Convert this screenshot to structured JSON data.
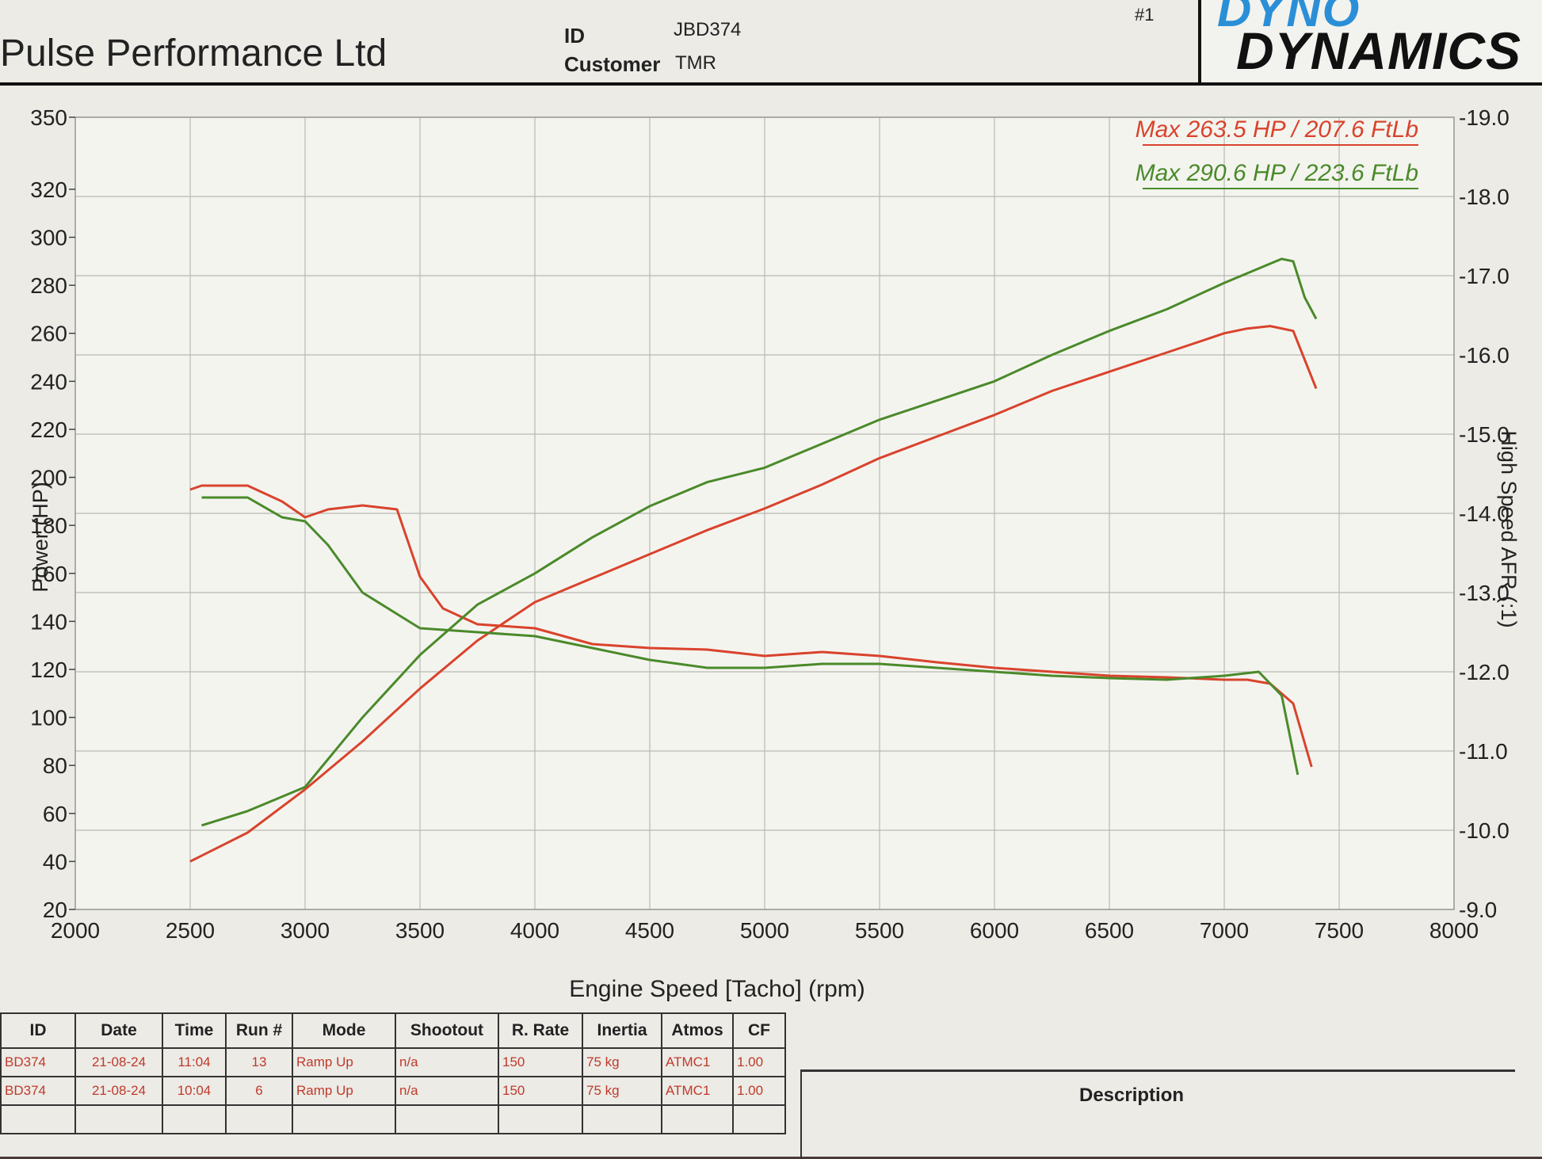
{
  "header": {
    "company": "Pulse Performance Ltd",
    "id_label": "ID",
    "id_value": "JBD374",
    "customer_label": "Customer",
    "customer_value": "TMR",
    "sheet_number": "#1",
    "logo_top": "DYNO",
    "logo_bottom": "DYNAMICS"
  },
  "chart_data": {
    "type": "line",
    "xlabel": "Engine Speed [Tacho] (rpm)",
    "ylabel": "Power (HP)",
    "y2label": "High Speed AFR (:1)",
    "xlim": [
      2000,
      8000
    ],
    "ylim": [
      20,
      350
    ],
    "y2lim": [
      9.0,
      19.0
    ],
    "x_ticks": [
      2000,
      2500,
      3000,
      3500,
      4000,
      4500,
      5000,
      5500,
      6000,
      6500,
      7000,
      7500,
      8000
    ],
    "y_ticks": [
      20,
      40,
      60,
      80,
      100,
      120,
      140,
      160,
      180,
      200,
      220,
      240,
      260,
      280,
      300,
      320,
      350
    ],
    "y2_ticks": [
      "-9.0",
      "-10.0",
      "-11.0",
      "-12.0",
      "-13.0",
      "-14.0",
      "-15.0",
      "-16.0",
      "-17.0",
      "-18.0",
      "-19.0"
    ],
    "y2_tick_values": [
      9,
      10,
      11,
      12,
      13,
      14,
      15,
      16,
      17,
      18,
      19
    ],
    "grid": true,
    "legend_position": "top-right",
    "series": [
      {
        "name": "Max 263.5 HP  / 207.6 FtLb",
        "color": "#d9432c",
        "power_hp": [
          [
            2500,
            40
          ],
          [
            2750,
            52
          ],
          [
            3000,
            70
          ],
          [
            3250,
            90
          ],
          [
            3500,
            112
          ],
          [
            3750,
            132
          ],
          [
            4000,
            148
          ],
          [
            4250,
            158
          ],
          [
            4500,
            168
          ],
          [
            4750,
            178
          ],
          [
            5000,
            187
          ],
          [
            5250,
            197
          ],
          [
            5500,
            208
          ],
          [
            5750,
            217
          ],
          [
            6000,
            226
          ],
          [
            6250,
            236
          ],
          [
            6500,
            244
          ],
          [
            6750,
            252
          ],
          [
            7000,
            260
          ],
          [
            7100,
            262
          ],
          [
            7200,
            263
          ],
          [
            7300,
            261
          ],
          [
            7400,
            237
          ]
        ],
        "afr": [
          [
            2500,
            14.3
          ],
          [
            2550,
            14.35
          ],
          [
            2750,
            14.35
          ],
          [
            2900,
            14.15
          ],
          [
            3000,
            13.95
          ],
          [
            3100,
            14.05
          ],
          [
            3250,
            14.1
          ],
          [
            3400,
            14.05
          ],
          [
            3500,
            13.2
          ],
          [
            3600,
            12.8
          ],
          [
            3750,
            12.6
          ],
          [
            4000,
            12.55
          ],
          [
            4250,
            12.35
          ],
          [
            4500,
            12.3
          ],
          [
            4750,
            12.28
          ],
          [
            5000,
            12.2
          ],
          [
            5250,
            12.25
          ],
          [
            5500,
            12.2
          ],
          [
            5750,
            12.12
          ],
          [
            6000,
            12.05
          ],
          [
            6250,
            12.0
          ],
          [
            6500,
            11.95
          ],
          [
            6750,
            11.93
          ],
          [
            7000,
            11.9
          ],
          [
            7100,
            11.9
          ],
          [
            7200,
            11.85
          ],
          [
            7300,
            11.6
          ],
          [
            7380,
            10.8
          ]
        ]
      },
      {
        "name": "Max 290.6 HP  / 223.6 FtLb",
        "color": "#4a8a2a",
        "power_hp": [
          [
            2550,
            55
          ],
          [
            2750,
            61
          ],
          [
            3000,
            71
          ],
          [
            3250,
            100
          ],
          [
            3500,
            126
          ],
          [
            3750,
            147
          ],
          [
            4000,
            160
          ],
          [
            4250,
            175
          ],
          [
            4500,
            188
          ],
          [
            4750,
            198
          ],
          [
            5000,
            204
          ],
          [
            5250,
            214
          ],
          [
            5500,
            224
          ],
          [
            5750,
            232
          ],
          [
            6000,
            240
          ],
          [
            6250,
            251
          ],
          [
            6500,
            261
          ],
          [
            6750,
            270
          ],
          [
            7000,
            281
          ],
          [
            7250,
            291
          ],
          [
            7300,
            290
          ],
          [
            7350,
            275
          ],
          [
            7400,
            266
          ]
        ],
        "afr": [
          [
            2550,
            14.2
          ],
          [
            2750,
            14.2
          ],
          [
            2900,
            13.95
          ],
          [
            3000,
            13.9
          ],
          [
            3100,
            13.6
          ],
          [
            3250,
            13.0
          ],
          [
            3500,
            12.55
          ],
          [
            3750,
            12.5
          ],
          [
            4000,
            12.45
          ],
          [
            4250,
            12.3
          ],
          [
            4500,
            12.15
          ],
          [
            4750,
            12.05
          ],
          [
            5000,
            12.05
          ],
          [
            5250,
            12.1
          ],
          [
            5500,
            12.1
          ],
          [
            5750,
            12.05
          ],
          [
            6000,
            12.0
          ],
          [
            6250,
            11.95
          ],
          [
            6500,
            11.92
          ],
          [
            6750,
            11.9
          ],
          [
            7000,
            11.95
          ],
          [
            7150,
            12.0
          ],
          [
            7250,
            11.7
          ],
          [
            7320,
            10.7
          ]
        ]
      }
    ]
  },
  "table": {
    "columns": [
      "ID",
      "Date",
      "Time",
      "Run #",
      "Mode",
      "Shootout",
      "R. Rate",
      "Inertia",
      "Atmos",
      "CF"
    ],
    "rows": [
      [
        "BD374",
        "21-08-24",
        "11:04",
        "13",
        "Ramp Up",
        "n/a",
        "150",
        "75 kg",
        "ATMC1",
        "1.00"
      ],
      [
        "BD374",
        "21-08-24",
        "10:04",
        "6",
        "Ramp Up",
        "n/a",
        "150",
        "75 kg",
        "ATMC1",
        "1.00"
      ]
    ]
  },
  "description": {
    "title": "Description"
  }
}
